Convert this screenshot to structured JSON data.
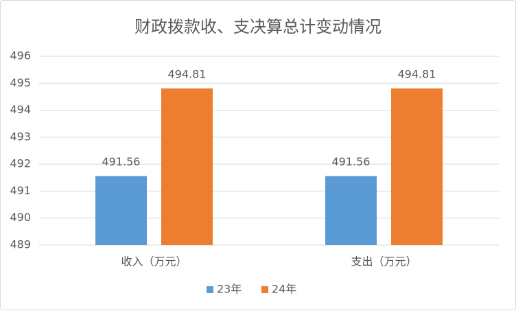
{
  "chart_data": {
    "type": "bar",
    "title": "财政拨款收、支决算总计变动情况",
    "categories": [
      "收入（万元）",
      "支出（万元）"
    ],
    "series": [
      {
        "name": "23年",
        "color": "#5b9bd5",
        "values": [
          491.56,
          491.56
        ]
      },
      {
        "name": "24年",
        "color": "#ed7d31",
        "values": [
          494.81,
          494.81
        ]
      }
    ],
    "ylim": [
      489,
      496
    ],
    "yticks": [
      489,
      490,
      491,
      492,
      493,
      494,
      495,
      496
    ],
    "grid": true,
    "legend": "bottom"
  }
}
